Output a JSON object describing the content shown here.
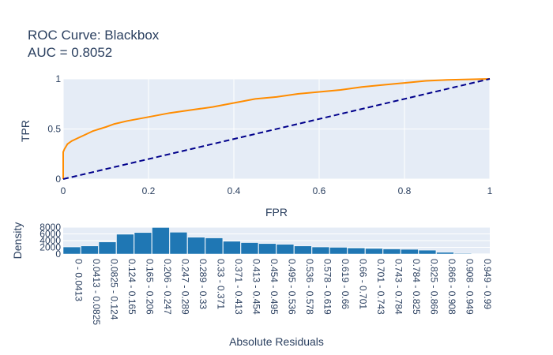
{
  "chart_data": [
    {
      "type": "line",
      "title_line1": "ROC Curve: Blackbox",
      "title_line2": "AUC = 0.8052",
      "xlabel": "FPR",
      "ylabel": "TPR",
      "xlim": [
        0,
        1
      ],
      "ylim": [
        0,
        1
      ],
      "xticks": [
        "0",
        "0.2",
        "0.4",
        "0.6",
        "0.8",
        "1"
      ],
      "yticks": [
        "0",
        "0.5",
        "1"
      ],
      "grid": true,
      "series": [
        {
          "color": "#ff8c00",
          "style": "solid",
          "x": [
            0,
            0,
            0.003,
            0.01,
            0.02,
            0.035,
            0.05,
            0.07,
            0.1,
            0.12,
            0.15,
            0.2,
            0.25,
            0.3,
            0.35,
            0.4,
            0.45,
            0.5,
            0.55,
            0.6,
            0.65,
            0.7,
            0.75,
            0.8,
            0.85,
            0.9,
            0.95,
            1.0
          ],
          "y": [
            0,
            0.27,
            0.3,
            0.35,
            0.38,
            0.41,
            0.44,
            0.48,
            0.52,
            0.55,
            0.58,
            0.62,
            0.66,
            0.69,
            0.72,
            0.76,
            0.8,
            0.82,
            0.85,
            0.87,
            0.89,
            0.92,
            0.94,
            0.96,
            0.98,
            0.99,
            0.995,
            1.0
          ]
        },
        {
          "color": "#00008b",
          "style": "dashed",
          "x": [
            0,
            1
          ],
          "y": [
            0,
            1
          ]
        }
      ]
    },
    {
      "type": "bar",
      "xlabel": "Absolute Residuals",
      "ylabel": "Density",
      "ylim": [
        0,
        8000
      ],
      "yticks": [
        "0",
        "2000",
        "4000",
        "6000",
        "8000"
      ],
      "bar_color": "#1f77b4",
      "categories": [
        "0 - 0.0413",
        "0.0413 - 0.0825",
        "0.0825 - 0.124",
        "0.124 - 0.165",
        "0.165 - 0.206",
        "0.206 - 0.247",
        "0.247 - 0.289",
        "0.289 - 0.33",
        "0.33 - 0.371",
        "0.371 - 0.413",
        "0.413 - 0.454",
        "0.454 - 0.495",
        "0.495 - 0.536",
        "0.536 - 0.578",
        "0.578 - 0.619",
        "0.619 - 0.66",
        "0.66 - 0.701",
        "0.701 - 0.743",
        "0.743 - 0.784",
        "0.784 - 0.825",
        "0.825 - 0.866",
        "0.866 - 0.908",
        "0.908 - 0.949",
        "0.949 - 0.99"
      ],
      "values": [
        2100,
        2400,
        3600,
        5900,
        6400,
        7900,
        6500,
        5000,
        4800,
        3800,
        3400,
        3100,
        2900,
        2400,
        2100,
        2000,
        1800,
        1650,
        1500,
        1400,
        1150,
        500,
        200,
        100
      ]
    }
  ]
}
